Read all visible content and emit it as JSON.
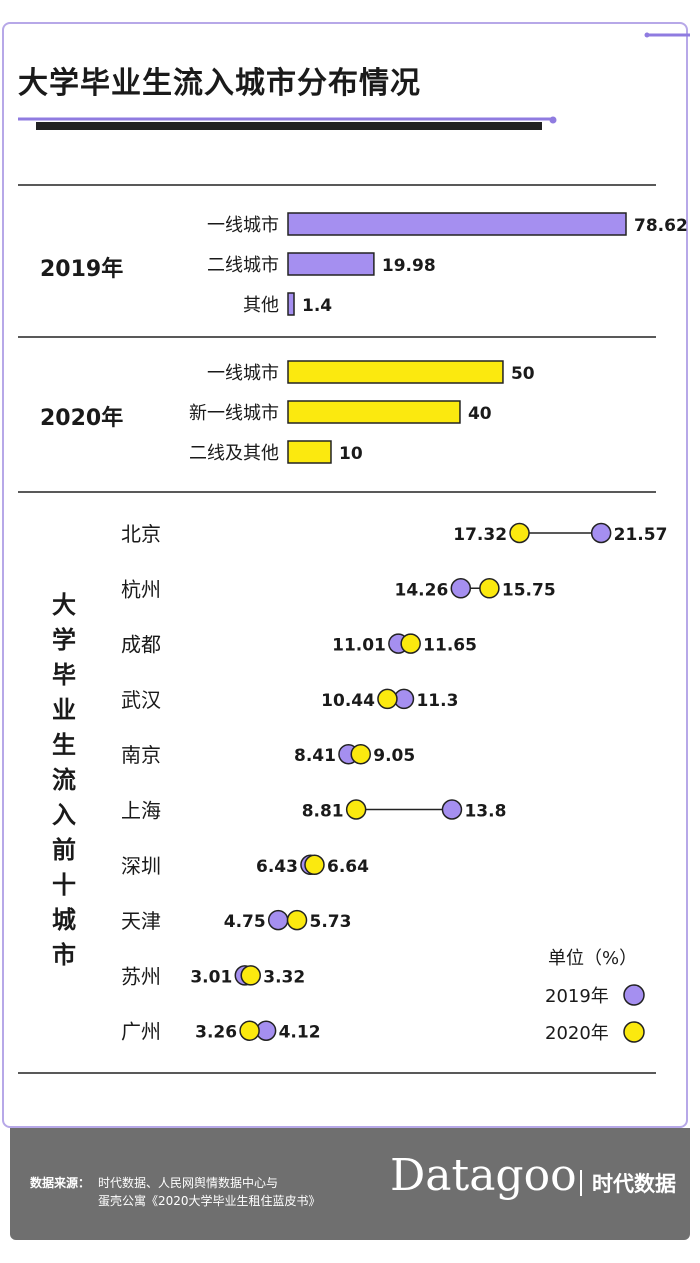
{
  "title": "大学毕业生流入城市分布情况",
  "vertical_title": [
    "大",
    "学",
    "毕",
    "业",
    "生",
    "流",
    "入",
    "前",
    "十",
    "城",
    "市"
  ],
  "colors": {
    "y2019": "#a58ff0",
    "y2020": "#fbe90f",
    "accent": "#8f7be0",
    "dark": "#222222",
    "footer": "#6f6f6f"
  },
  "chart_data": [
    {
      "type": "bar",
      "group": "2019年",
      "categories": [
        "一线城市",
        "二线城市",
        "其他"
      ],
      "values": [
        78.62,
        19.98,
        1.4
      ],
      "value_labels": [
        "78.62",
        "19.98",
        "1.4"
      ]
    },
    {
      "type": "bar",
      "group": "2020年",
      "categories": [
        "一线城市",
        "新一线城市",
        "二线及其他"
      ],
      "values": [
        50,
        40,
        10
      ],
      "value_labels": [
        "50",
        "40",
        "10"
      ]
    },
    {
      "type": "dumbbell",
      "categories": [
        "北京",
        "杭州",
        "成都",
        "武汉",
        "南京",
        "上海",
        "深圳",
        "天津",
        "苏州",
        "广州"
      ],
      "series": [
        {
          "name": "2019年",
          "values": [
            21.57,
            14.26,
            11.01,
            11.3,
            8.41,
            13.8,
            6.43,
            4.75,
            3.01,
            4.12
          ],
          "labels": [
            "21.57",
            "14.26",
            "11.01",
            "11.3",
            "8.41",
            "13.8",
            "6.43",
            "4.75",
            "3.01",
            "4.12"
          ]
        },
        {
          "name": "2020年",
          "values": [
            17.32,
            15.75,
            11.65,
            10.44,
            9.05,
            8.81,
            6.64,
            5.73,
            3.32,
            3.26
          ],
          "labels": [
            "17.32",
            "15.75",
            "11.65",
            "10.44",
            "9.05",
            "8.81",
            "6.64",
            "5.73",
            "3.32",
            "3.26"
          ]
        }
      ],
      "legend_title": "单位（%）",
      "legend_placement": "bottom-right"
    }
  ],
  "footer": {
    "source_label": "数据来源：",
    "source_line1": "时代数据、人民网舆情数据中心与",
    "source_line2": "蛋壳公寓《2020大学毕业生租住蓝皮书》",
    "brand": "Datagoo",
    "brand_cn": "时代数据"
  }
}
